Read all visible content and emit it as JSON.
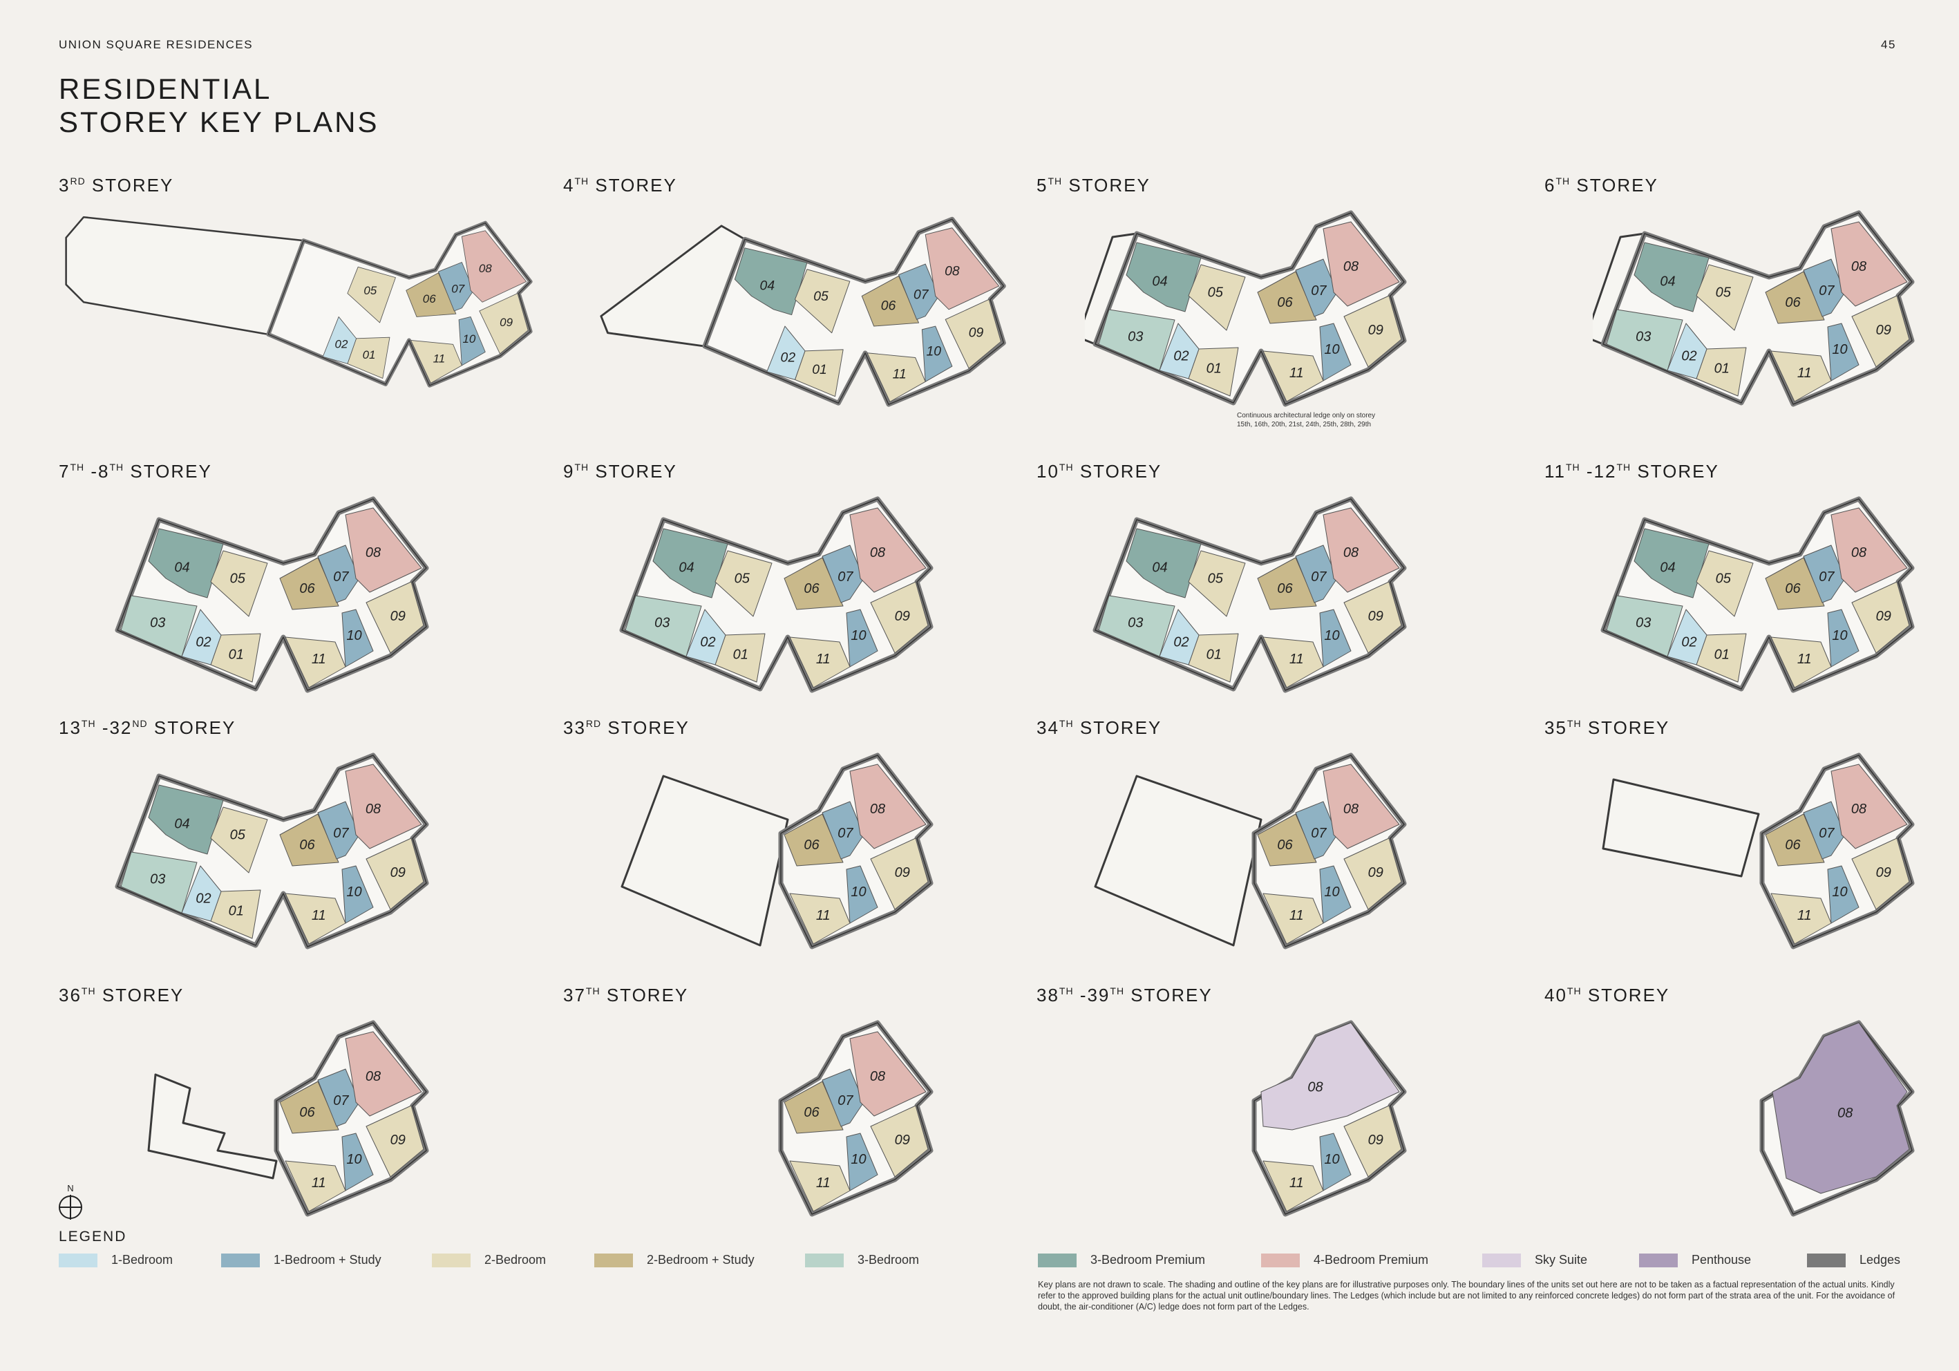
{
  "header": {
    "brand": "UNION SQUARE RESIDENCES",
    "page_number": "45"
  },
  "title": {
    "line1": "RESIDENTIAL",
    "line2": "STOREY KEY PLANS"
  },
  "unit_types": {
    "1br": {
      "label": "1-Bedroom",
      "color": "#c4e0ea"
    },
    "1brs": {
      "label": "1-Bedroom + Study",
      "color": "#8fb2c3"
    },
    "2br": {
      "label": "2-Bedroom",
      "color": "#e4dcbc"
    },
    "2brs": {
      "label": "2-Bedroom + Study",
      "color": "#c9b98b"
    },
    "3br": {
      "label": "3-Bedroom",
      "color": "#b8d3c9"
    },
    "3brp": {
      "label": "3-Bedroom Premium",
      "color": "#8aada6"
    },
    "4brp": {
      "label": "4-Bedroom Premium",
      "color": "#e0b8b2"
    },
    "sky": {
      "label": "Sky Suite",
      "color": "#dacfdf"
    },
    "ph": {
      "label": "Penthouse",
      "color": "#ab9cb9"
    },
    "ledge": {
      "label": "Ledges",
      "color": "#7a7a7a"
    }
  },
  "legend": {
    "title": "LEGEND",
    "compass_label": "N",
    "items": [
      "1br",
      "1brs",
      "2br",
      "2brs",
      "3br",
      "3brp",
      "4brp",
      "sky",
      "ph",
      "ledge"
    ]
  },
  "plans": [
    {
      "title": [
        {
          "t": "3"
        },
        {
          "s": "RD"
        },
        {
          "t": " STOREY"
        }
      ],
      "units": [
        [
          "01",
          "2br"
        ],
        [
          "02",
          "1br"
        ],
        [
          "05",
          "2br"
        ],
        [
          "06",
          "2brs"
        ],
        [
          "07",
          "1brs"
        ],
        [
          "08",
          "4brp"
        ],
        [
          "09",
          "2br"
        ],
        [
          "10",
          "1brs"
        ],
        [
          "11",
          "2br"
        ]
      ]
    },
    {
      "title": [
        {
          "t": "4"
        },
        {
          "s": "TH"
        },
        {
          "t": " STOREY"
        }
      ],
      "units": [
        [
          "01",
          "2br"
        ],
        [
          "02",
          "1br"
        ],
        [
          "04",
          "3brp"
        ],
        [
          "05",
          "2br"
        ],
        [
          "06",
          "2brs"
        ],
        [
          "07",
          "1brs"
        ],
        [
          "08",
          "4brp"
        ],
        [
          "09",
          "2br"
        ],
        [
          "10",
          "1brs"
        ],
        [
          "11",
          "2br"
        ]
      ]
    },
    {
      "title": [
        {
          "t": "5"
        },
        {
          "s": "TH"
        },
        {
          "t": " STOREY"
        }
      ],
      "units": [
        [
          "01",
          "2br"
        ],
        [
          "02",
          "1br"
        ],
        [
          "03",
          "3br"
        ],
        [
          "04",
          "3brp"
        ],
        [
          "05",
          "2br"
        ],
        [
          "06",
          "2brs"
        ],
        [
          "07",
          "1brs"
        ],
        [
          "08",
          "4brp"
        ],
        [
          "09",
          "2br"
        ],
        [
          "10",
          "1brs"
        ],
        [
          "11",
          "2br"
        ]
      ]
    },
    {
      "title": [
        {
          "t": "6"
        },
        {
          "s": "TH"
        },
        {
          "t": " STOREY"
        }
      ],
      "units": [
        [
          "01",
          "2br"
        ],
        [
          "02",
          "1br"
        ],
        [
          "03",
          "3br"
        ],
        [
          "04",
          "3brp"
        ],
        [
          "05",
          "2br"
        ],
        [
          "06",
          "2brs"
        ],
        [
          "07",
          "1brs"
        ],
        [
          "08",
          "4brp"
        ],
        [
          "09",
          "2br"
        ],
        [
          "10",
          "1brs"
        ],
        [
          "11",
          "2br"
        ]
      ]
    },
    {
      "title": [
        {
          "t": "7"
        },
        {
          "s": "TH"
        },
        {
          "t": " -8"
        },
        {
          "s": "TH"
        },
        {
          "t": " STOREY"
        }
      ],
      "units": [
        [
          "01",
          "2br"
        ],
        [
          "02",
          "1br"
        ],
        [
          "03",
          "3br"
        ],
        [
          "04",
          "3brp"
        ],
        [
          "05",
          "2br"
        ],
        [
          "06",
          "2brs"
        ],
        [
          "07",
          "1brs"
        ],
        [
          "08",
          "4brp"
        ],
        [
          "09",
          "2br"
        ],
        [
          "10",
          "1brs"
        ],
        [
          "11",
          "2br"
        ]
      ]
    },
    {
      "title": [
        {
          "t": "9"
        },
        {
          "s": "TH"
        },
        {
          "t": " STOREY"
        }
      ],
      "units": [
        [
          "01",
          "2br"
        ],
        [
          "02",
          "1br"
        ],
        [
          "03",
          "3br"
        ],
        [
          "04",
          "3brp"
        ],
        [
          "05",
          "2br"
        ],
        [
          "06",
          "2brs"
        ],
        [
          "07",
          "1brs"
        ],
        [
          "08",
          "4brp"
        ],
        [
          "09",
          "2br"
        ],
        [
          "10",
          "1brs"
        ],
        [
          "11",
          "2br"
        ]
      ]
    },
    {
      "title": [
        {
          "t": "10"
        },
        {
          "s": "TH"
        },
        {
          "t": " STOREY"
        }
      ],
      "units": [
        [
          "01",
          "2br"
        ],
        [
          "02",
          "1br"
        ],
        [
          "03",
          "3br"
        ],
        [
          "04",
          "3brp"
        ],
        [
          "05",
          "2br"
        ],
        [
          "06",
          "2brs"
        ],
        [
          "07",
          "1brs"
        ],
        [
          "08",
          "4brp"
        ],
        [
          "09",
          "2br"
        ],
        [
          "10",
          "1brs"
        ],
        [
          "11",
          "2br"
        ]
      ]
    },
    {
      "title": [
        {
          "t": "11"
        },
        {
          "s": "TH"
        },
        {
          "t": " -12"
        },
        {
          "s": "TH"
        },
        {
          "t": " STOREY"
        }
      ],
      "units": [
        [
          "01",
          "2br"
        ],
        [
          "02",
          "1br"
        ],
        [
          "03",
          "3br"
        ],
        [
          "04",
          "3brp"
        ],
        [
          "05",
          "2br"
        ],
        [
          "06",
          "2brs"
        ],
        [
          "07",
          "1brs"
        ],
        [
          "08",
          "4brp"
        ],
        [
          "09",
          "2br"
        ],
        [
          "10",
          "1brs"
        ],
        [
          "11",
          "2br"
        ]
      ]
    },
    {
      "title": [
        {
          "t": "13"
        },
        {
          "s": "TH"
        },
        {
          "t": " -32"
        },
        {
          "s": "ND"
        },
        {
          "t": " STOREY"
        }
      ],
      "units": [
        [
          "01",
          "2br"
        ],
        [
          "02",
          "1br"
        ],
        [
          "03",
          "3br"
        ],
        [
          "04",
          "3brp"
        ],
        [
          "05",
          "2br"
        ],
        [
          "06",
          "2brs"
        ],
        [
          "07",
          "1brs"
        ],
        [
          "08",
          "4brp"
        ],
        [
          "09",
          "2br"
        ],
        [
          "10",
          "1brs"
        ],
        [
          "11",
          "2br"
        ]
      ],
      "note": [
        "Continuous architectural ledge only on storey",
        "15th, 16th, 20th, 21st, 24th, 25th, 28th, 29th"
      ]
    },
    {
      "title": [
        {
          "t": "33"
        },
        {
          "s": "RD"
        },
        {
          "t": " STOREY"
        }
      ],
      "units": [
        [
          "06",
          "2brs"
        ],
        [
          "07",
          "1brs"
        ],
        [
          "08",
          "4brp"
        ],
        [
          "09",
          "2br"
        ],
        [
          "10",
          "1brs"
        ],
        [
          "11",
          "2br"
        ]
      ]
    },
    {
      "title": [
        {
          "t": "34"
        },
        {
          "s": "TH"
        },
        {
          "t": " STOREY"
        }
      ],
      "units": [
        [
          "06",
          "2brs"
        ],
        [
          "07",
          "1brs"
        ],
        [
          "08",
          "4brp"
        ],
        [
          "09",
          "2br"
        ],
        [
          "10",
          "1brs"
        ],
        [
          "11",
          "2br"
        ]
      ]
    },
    {
      "title": [
        {
          "t": "35"
        },
        {
          "s": "TH"
        },
        {
          "t": " STOREY"
        }
      ],
      "units": [
        [
          "06",
          "2brs"
        ],
        [
          "07",
          "1brs"
        ],
        [
          "08",
          "4brp"
        ],
        [
          "09",
          "2br"
        ],
        [
          "10",
          "1brs"
        ],
        [
          "11",
          "2br"
        ]
      ]
    },
    {
      "title": [
        {
          "t": "36"
        },
        {
          "s": "TH"
        },
        {
          "t": " STOREY"
        }
      ],
      "units": [
        [
          "06",
          "2brs"
        ],
        [
          "07",
          "1brs"
        ],
        [
          "08",
          "4brp"
        ],
        [
          "09",
          "2br"
        ],
        [
          "10",
          "1brs"
        ],
        [
          "11",
          "2br"
        ]
      ]
    },
    {
      "title": [
        {
          "t": "37"
        },
        {
          "s": "TH"
        },
        {
          "t": " STOREY"
        }
      ],
      "units": [
        [
          "06",
          "2brs"
        ],
        [
          "07",
          "1brs"
        ],
        [
          "08",
          "4brp"
        ],
        [
          "09",
          "2br"
        ],
        [
          "10",
          "1brs"
        ],
        [
          "11",
          "2br"
        ]
      ]
    },
    {
      "title": [
        {
          "t": "38"
        },
        {
          "s": "TH"
        },
        {
          "t": " -39"
        },
        {
          "s": "TH"
        },
        {
          "t": " STOREY"
        }
      ],
      "units": [
        [
          "08",
          "sky"
        ],
        [
          "09",
          "2br"
        ],
        [
          "10",
          "1brs"
        ],
        [
          "11",
          "2br"
        ]
      ]
    },
    {
      "title": [
        {
          "t": "40"
        },
        {
          "s": "TH"
        },
        {
          "t": " STOREY"
        }
      ],
      "units": [
        [
          "08",
          "ph"
        ]
      ]
    }
  ],
  "footnote": "Key plans are not drawn to scale. The shading and outline of the key plans are for illustrative purposes only. The boundary lines of the units set out here are not to be taken as a factual representation of the actual units. Kindly refer to the approved building plans for the actual unit outline/boundary lines. The Ledges (which include but are not limited to any reinforced concrete ledges) do not form part of the strata area of the unit. For the avoidance of doubt, the air-conditioner (A/C) ledge does not form part of the Ledges."
}
